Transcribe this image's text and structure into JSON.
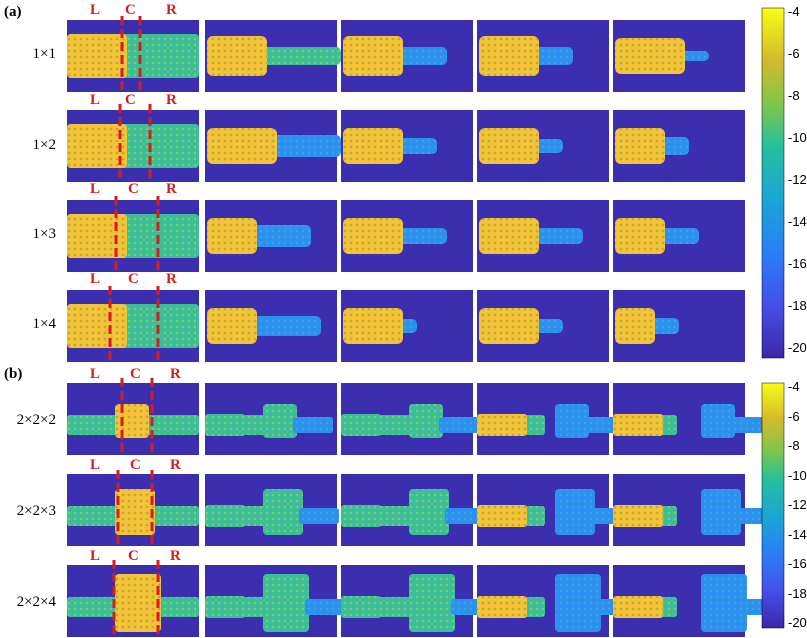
{
  "panel_labels": {
    "a": "(a)",
    "b": "(b)"
  },
  "region_labels": {
    "left": "L",
    "center": "C",
    "right": "R"
  },
  "rows_a": [
    {
      "label": "1×1"
    },
    {
      "label": "1×2"
    },
    {
      "label": "1×3"
    },
    {
      "label": "1×4"
    }
  ],
  "rows_b": [
    {
      "label": "2×2×2"
    },
    {
      "label": "2×2×3"
    },
    {
      "label": "2×2×4"
    }
  ],
  "colorbar": {
    "ticks": [
      "-4",
      "-6",
      "-8",
      "-10",
      "-12",
      "-14",
      "-16",
      "-18",
      "-20"
    ],
    "min": -20,
    "max": -4,
    "colormap": "parula"
  },
  "colors": {
    "background_plot": "#3b2fb0",
    "high": "#f7e03a",
    "guide_lines": "#d61c1c"
  }
}
